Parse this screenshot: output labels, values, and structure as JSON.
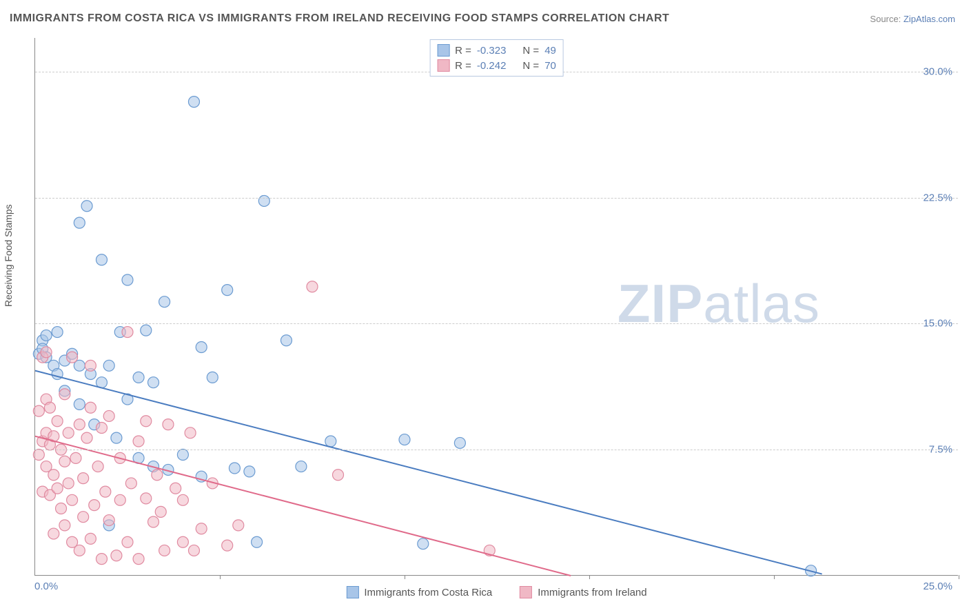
{
  "title": "IMMIGRANTS FROM COSTA RICA VS IMMIGRANTS FROM IRELAND RECEIVING FOOD STAMPS CORRELATION CHART",
  "source_label": "Source:",
  "source_name": "ZipAtlas.com",
  "y_axis_title": "Receiving Food Stamps",
  "watermark_bold": "ZIP",
  "watermark_rest": "atlas",
  "chart": {
    "type": "scatter",
    "xlim": [
      0,
      25
    ],
    "ylim": [
      0,
      32
    ],
    "x_tick_left_label": "0.0%",
    "x_tick_right_label": "25.0%",
    "x_ticks": [
      0,
      5,
      10,
      15,
      20,
      25
    ],
    "y_gridlines": [
      7.5,
      15.0,
      22.5,
      30.0
    ],
    "y_tick_labels": [
      "7.5%",
      "15.0%",
      "22.5%",
      "30.0%"
    ],
    "background_color": "#ffffff",
    "grid_color": "#cccccc",
    "axis_color": "#888888",
    "tick_label_color": "#5b7fb5",
    "marker_radius": 8,
    "marker_opacity": 0.55,
    "series": [
      {
        "name": "Immigrants from Costa Rica",
        "color_fill": "#a8c5e8",
        "color_stroke": "#6b9bd1",
        "line_color": "#4a7cc0",
        "R": "-0.323",
        "N": "49",
        "trend": {
          "x1": 0,
          "y1": 12.2,
          "x2": 21.3,
          "y2": 0.1
        },
        "points": [
          [
            0.1,
            13.2
          ],
          [
            0.2,
            14.0
          ],
          [
            0.2,
            13.5
          ],
          [
            0.3,
            13.0
          ],
          [
            0.3,
            14.3
          ],
          [
            0.5,
            12.5
          ],
          [
            0.6,
            12.0
          ],
          [
            0.6,
            14.5
          ],
          [
            0.8,
            11.0
          ],
          [
            0.8,
            12.8
          ],
          [
            1.0,
            13.2
          ],
          [
            1.2,
            21.0
          ],
          [
            1.2,
            10.2
          ],
          [
            1.2,
            12.5
          ],
          [
            1.4,
            22.0
          ],
          [
            1.5,
            12.0
          ],
          [
            1.6,
            9.0
          ],
          [
            1.8,
            11.5
          ],
          [
            1.8,
            18.8
          ],
          [
            2.0,
            12.5
          ],
          [
            2.0,
            3.0
          ],
          [
            2.2,
            8.2
          ],
          [
            2.3,
            14.5
          ],
          [
            2.5,
            10.5
          ],
          [
            2.5,
            17.6
          ],
          [
            2.8,
            11.8
          ],
          [
            2.8,
            7.0
          ],
          [
            3.0,
            14.6
          ],
          [
            3.2,
            6.5
          ],
          [
            3.2,
            11.5
          ],
          [
            3.5,
            16.3
          ],
          [
            3.6,
            6.3
          ],
          [
            4.0,
            7.2
          ],
          [
            4.3,
            28.2
          ],
          [
            4.5,
            13.6
          ],
          [
            4.5,
            5.9
          ],
          [
            4.8,
            11.8
          ],
          [
            5.2,
            17.0
          ],
          [
            5.4,
            6.4
          ],
          [
            5.8,
            6.2
          ],
          [
            6.0,
            2.0
          ],
          [
            6.2,
            22.3
          ],
          [
            6.8,
            14.0
          ],
          [
            7.2,
            6.5
          ],
          [
            8.0,
            8.0
          ],
          [
            10.0,
            8.1
          ],
          [
            10.5,
            1.9
          ],
          [
            11.5,
            7.9
          ],
          [
            21.0,
            0.3
          ]
        ]
      },
      {
        "name": "Immigrants from Ireland",
        "color_fill": "#f0b8c5",
        "color_stroke": "#e08aa0",
        "line_color": "#e06a8a",
        "R": "-0.242",
        "N": "70",
        "trend": {
          "x1": 0,
          "y1": 8.3,
          "x2": 14.5,
          "y2": 0
        },
        "points": [
          [
            0.1,
            7.2
          ],
          [
            0.1,
            9.8
          ],
          [
            0.2,
            8.0
          ],
          [
            0.2,
            13.0
          ],
          [
            0.2,
            5.0
          ],
          [
            0.3,
            6.5
          ],
          [
            0.3,
            8.5
          ],
          [
            0.3,
            10.5
          ],
          [
            0.3,
            13.3
          ],
          [
            0.4,
            7.8
          ],
          [
            0.4,
            4.8
          ],
          [
            0.4,
            10.0
          ],
          [
            0.5,
            6.0
          ],
          [
            0.5,
            8.3
          ],
          [
            0.5,
            2.5
          ],
          [
            0.6,
            9.2
          ],
          [
            0.6,
            5.2
          ],
          [
            0.7,
            7.5
          ],
          [
            0.7,
            4.0
          ],
          [
            0.8,
            10.8
          ],
          [
            0.8,
            3.0
          ],
          [
            0.8,
            6.8
          ],
          [
            0.9,
            8.5
          ],
          [
            0.9,
            5.5
          ],
          [
            1.0,
            2.0
          ],
          [
            1.0,
            13.0
          ],
          [
            1.0,
            4.5
          ],
          [
            1.1,
            7.0
          ],
          [
            1.2,
            9.0
          ],
          [
            1.2,
            1.5
          ],
          [
            1.3,
            5.8
          ],
          [
            1.3,
            3.5
          ],
          [
            1.4,
            8.2
          ],
          [
            1.5,
            12.5
          ],
          [
            1.5,
            2.2
          ],
          [
            1.5,
            10.0
          ],
          [
            1.6,
            4.2
          ],
          [
            1.7,
            6.5
          ],
          [
            1.8,
            1.0
          ],
          [
            1.8,
            8.8
          ],
          [
            1.9,
            5.0
          ],
          [
            2.0,
            3.3
          ],
          [
            2.0,
            9.5
          ],
          [
            2.2,
            1.2
          ],
          [
            2.3,
            7.0
          ],
          [
            2.3,
            4.5
          ],
          [
            2.5,
            14.5
          ],
          [
            2.5,
            2.0
          ],
          [
            2.6,
            5.5
          ],
          [
            2.8,
            8.0
          ],
          [
            2.8,
            1.0
          ],
          [
            3.0,
            4.6
          ],
          [
            3.0,
            9.2
          ],
          [
            3.2,
            3.2
          ],
          [
            3.3,
            6.0
          ],
          [
            3.4,
            3.8
          ],
          [
            3.5,
            1.5
          ],
          [
            3.6,
            9.0
          ],
          [
            3.8,
            5.2
          ],
          [
            4.0,
            2.0
          ],
          [
            4.0,
            4.5
          ],
          [
            4.2,
            8.5
          ],
          [
            4.3,
            1.5
          ],
          [
            4.5,
            2.8
          ],
          [
            4.8,
            5.5
          ],
          [
            5.2,
            1.8
          ],
          [
            5.5,
            3.0
          ],
          [
            7.5,
            17.2
          ],
          [
            8.2,
            6.0
          ],
          [
            12.3,
            1.5
          ]
        ]
      }
    ],
    "legend_top_labels": {
      "R": "R =",
      "N": "N ="
    },
    "legend_bottom_labels": [
      "Immigrants from Costa Rica",
      "Immigrants from Ireland"
    ]
  }
}
